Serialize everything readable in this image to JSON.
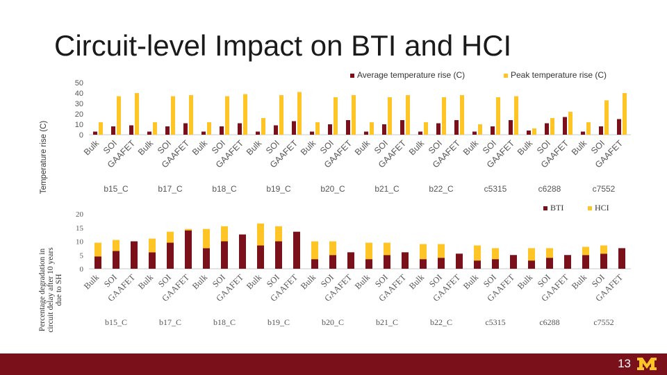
{
  "slide": {
    "title": "Circuit-level Impact on BTI and HCI",
    "page_number": "13",
    "logo_text": "M"
  },
  "colors": {
    "dark": "#7a1019",
    "light": "#ffc425",
    "axis": "#555555",
    "footer": "#7a1019"
  },
  "chart_data": [
    {
      "type": "bar",
      "title": "",
      "ylabel": "Temperature rise (C)",
      "xlabel": "",
      "ylim": [
        0,
        50
      ],
      "yticks": [
        "0",
        "10",
        "20",
        "30",
        "40",
        "50"
      ],
      "groups": [
        "b15_C",
        "b17_C",
        "b18_C",
        "b19_C",
        "b20_C",
        "b21_C",
        "b22_C",
        "c5315",
        "c6288",
        "c7552"
      ],
      "categories": [
        "Bulk",
        "SOI",
        "GAAFET"
      ],
      "legend": [
        "Average temperature rise (C)",
        "Peak temperature rise (C)"
      ],
      "series": [
        {
          "name": "Average temperature rise (C)",
          "values": [
            [
              3,
              8,
              9
            ],
            [
              3,
              8,
              11
            ],
            [
              3,
              8,
              11
            ],
            [
              3,
              9,
              13
            ],
            [
              3,
              10,
              14
            ],
            [
              3,
              10,
              14
            ],
            [
              3,
              11,
              14
            ],
            [
              3,
              8,
              14
            ],
            [
              4,
              11,
              17
            ],
            [
              3,
              8,
              15
            ]
          ]
        },
        {
          "name": "Peak temperature rise (C)",
          "values": [
            [
              12,
              37,
              40
            ],
            [
              12,
              37,
              38
            ],
            [
              12,
              37,
              39
            ],
            [
              16,
              38,
              41
            ],
            [
              12,
              36,
              38
            ],
            [
              12,
              36,
              38
            ],
            [
              12,
              36,
              38
            ],
            [
              10,
              36,
              37
            ],
            [
              6,
              16,
              22
            ],
            [
              12,
              33,
              40
            ]
          ]
        }
      ]
    },
    {
      "type": "bar",
      "stacked": true,
      "title": "",
      "ylabel": "Percentage degradation in circuit delay after 10 years due to SH",
      "xlabel": "",
      "ylim": [
        0,
        20
      ],
      "yticks": [
        "0",
        "5",
        "10",
        "15",
        "20"
      ],
      "groups": [
        "b15_C",
        "b17_C",
        "b18_C",
        "b19_C",
        "b20_C",
        "b21_C",
        "b22_C",
        "c5315",
        "c6288",
        "c7552"
      ],
      "categories": [
        "Bulk",
        "SOI",
        "GAAFET"
      ],
      "legend": [
        "BTI",
        "HCI"
      ],
      "series": [
        {
          "name": "BTI",
          "values": [
            [
              4.5,
              6.5,
              10
            ],
            [
              6,
              9.5,
              14
            ],
            [
              7.5,
              10,
              12.5
            ],
            [
              8.5,
              10,
              13.5
            ],
            [
              3.5,
              5,
              6
            ],
            [
              3.5,
              5,
              6
            ],
            [
              3.5,
              4,
              5.5
            ],
            [
              3,
              3.5,
              5
            ],
            [
              3,
              4,
              5
            ],
            [
              5,
              5.5,
              7.5
            ]
          ]
        },
        {
          "name": "HCI",
          "values": [
            [
              5,
              4,
              0
            ],
            [
              5,
              4,
              0.5
            ],
            [
              7,
              5.5,
              0
            ],
            [
              8,
              5.5,
              0
            ],
            [
              6.5,
              5,
              0
            ],
            [
              6,
              4.5,
              0
            ],
            [
              5.5,
              5,
              0
            ],
            [
              5.5,
              4,
              0
            ],
            [
              4.5,
              3.5,
              0
            ],
            [
              3,
              3,
              0
            ]
          ]
        }
      ]
    }
  ]
}
